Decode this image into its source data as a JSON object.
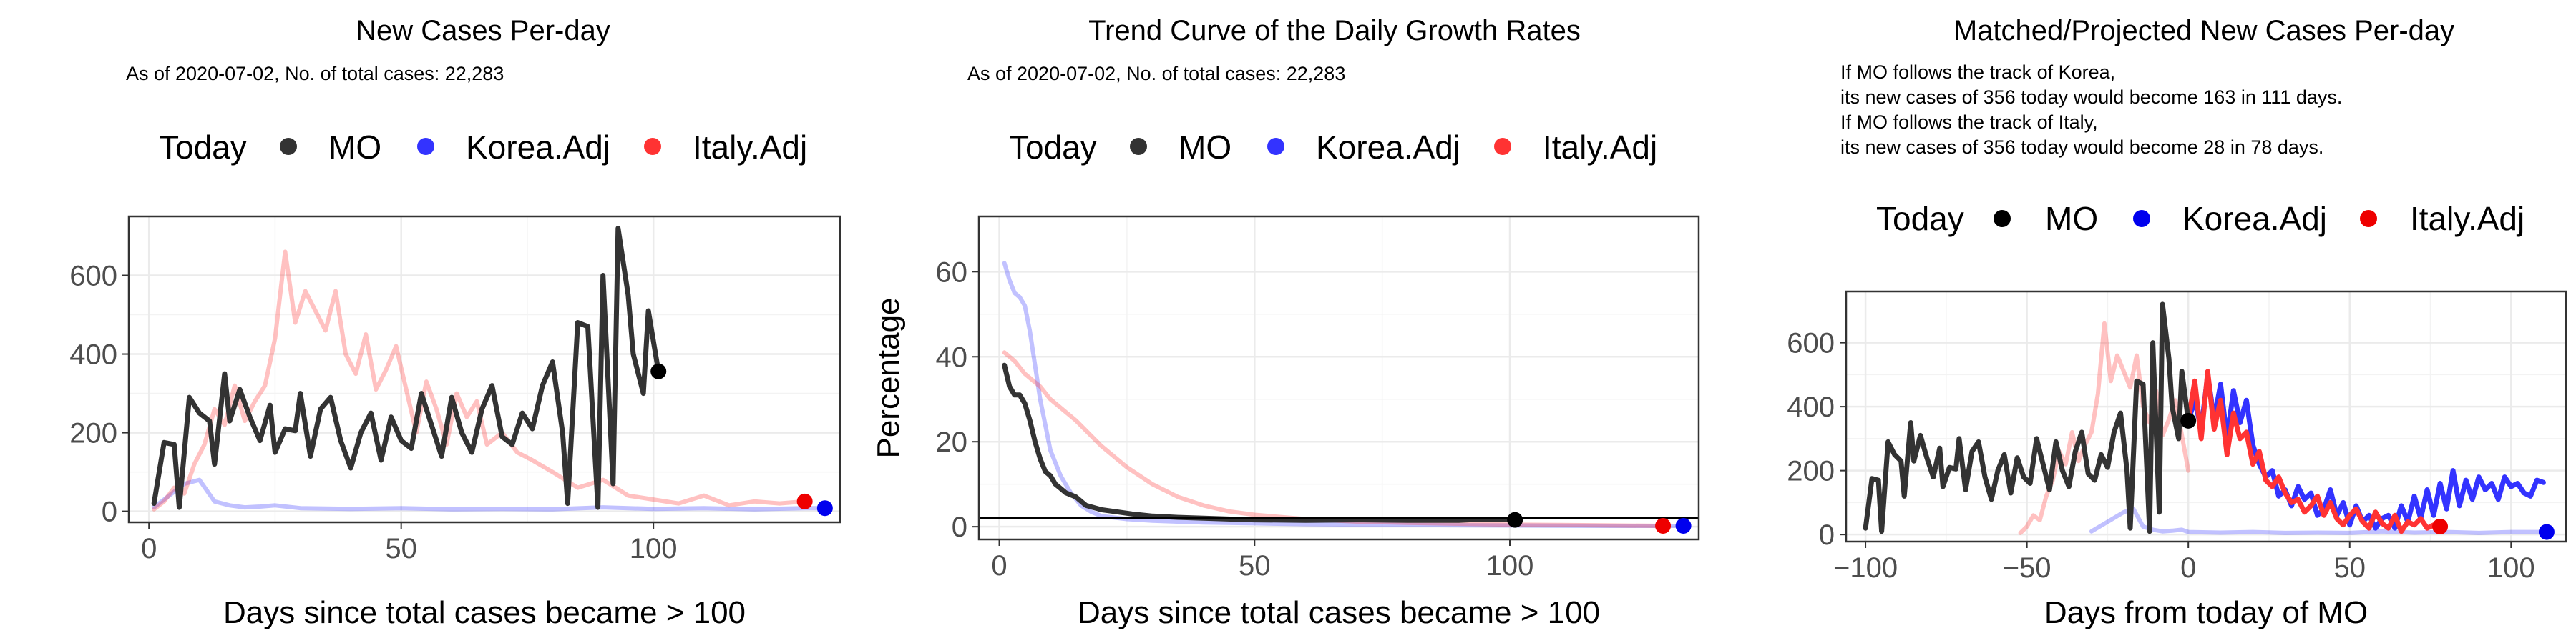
{
  "panels": [
    {
      "title": "New Cases Per-day",
      "subtitle": [
        "As of 2020-07-02, No. of total cases: 22,283"
      ],
      "legend": {
        "title": "Today",
        "items": [
          "MO",
          "Korea.Adj",
          "Italy.Adj"
        ]
      }
    },
    {
      "title": "Trend Curve of the Daily Growth Rates",
      "subtitle": [
        "As of 2020-07-02, No. of total cases: 22,283"
      ],
      "legend": {
        "title": "Today",
        "items": [
          "MO",
          "Korea.Adj",
          "Italy.Adj"
        ]
      }
    },
    {
      "title": "Matched/Projected New Cases Per-day",
      "subtitle": [
        "If MO follows the track of Korea,",
        "its new cases of 356 today would become 163 in 111 days.",
        "If MO follows the track of Italy,",
        "its new cases of 356 today would become 28 in 78 days."
      ],
      "legend": {
        "title": "Today",
        "items": [
          "MO",
          "Korea.Adj",
          "Italy.Adj"
        ]
      }
    }
  ],
  "colors": {
    "mo": "#333333",
    "korea": "#3333ff",
    "italy": "#ff3333",
    "grid": "#ebebeb",
    "frame": "#333333"
  },
  "chart_data": [
    {
      "type": "line",
      "title": "New Cases Per-day",
      "xlabel": "Days since total cases became > 100",
      "ylabel": "",
      "xlim": [
        -4,
        137
      ],
      "ylim": [
        -28,
        750
      ],
      "xticks": [
        0,
        50,
        100
      ],
      "yticks": [
        0,
        200,
        400,
        600
      ],
      "grid": true,
      "legend_position": "top",
      "series": [
        {
          "name": "MO",
          "color": "#333333",
          "opacity": 1.0,
          "x": [
            1,
            3,
            5,
            6,
            8,
            10,
            12,
            13,
            15,
            16,
            18,
            20,
            22,
            24,
            25,
            27,
            29,
            30,
            32,
            34,
            36,
            38,
            40,
            42,
            44,
            46,
            48,
            50,
            52,
            54,
            56,
            58,
            60,
            62,
            64,
            66,
            68,
            70,
            72,
            74,
            76,
            78,
            80,
            82,
            83,
            85,
            87,
            89,
            90,
            92,
            93,
            95,
            96,
            98,
            99,
            101
          ],
          "y": [
            20,
            175,
            170,
            10,
            290,
            250,
            230,
            120,
            350,
            230,
            310,
            240,
            180,
            270,
            150,
            210,
            205,
            300,
            140,
            260,
            290,
            180,
            110,
            200,
            250,
            130,
            240,
            180,
            160,
            300,
            220,
            140,
            290,
            200,
            150,
            260,
            320,
            190,
            170,
            250,
            210,
            320,
            380,
            200,
            20,
            480,
            470,
            10,
            600,
            70,
            720,
            550,
            400,
            300,
            510,
            356
          ]
        },
        {
          "name": "Korea.Adj",
          "color": "#3333ff",
          "opacity": 0.3,
          "x": [
            1,
            4,
            7,
            10,
            13,
            16,
            19,
            22,
            25,
            30,
            40,
            50,
            60,
            70,
            80,
            90,
            100,
            110,
            120,
            130,
            134
          ],
          "y": [
            10,
            40,
            70,
            80,
            25,
            15,
            10,
            12,
            15,
            8,
            6,
            8,
            5,
            6,
            5,
            10,
            6,
            8,
            5,
            8,
            8
          ]
        },
        {
          "name": "Italy.Adj",
          "color": "#ff3333",
          "opacity": 0.3,
          "x": [
            1,
            3,
            5,
            7,
            9,
            11,
            13,
            15,
            17,
            19,
            21,
            23,
            25,
            27,
            29,
            31,
            33,
            35,
            37,
            39,
            41,
            43,
            45,
            47,
            49,
            51,
            53,
            55,
            57,
            59,
            61,
            63,
            65,
            67,
            70,
            73,
            76,
            80,
            85,
            90,
            95,
            100,
            105,
            110,
            115,
            120,
            125,
            130
          ],
          "y": [
            5,
            25,
            60,
            45,
            120,
            170,
            260,
            220,
            320,
            230,
            280,
            320,
            440,
            660,
            480,
            560,
            510,
            460,
            560,
            400,
            350,
            450,
            310,
            360,
            420,
            310,
            200,
            330,
            260,
            170,
            300,
            240,
            280,
            170,
            200,
            150,
            130,
            100,
            60,
            80,
            40,
            30,
            20,
            40,
            15,
            25,
            20,
            25
          ]
        }
      ],
      "today_points": [
        {
          "series": "MO",
          "x": 101,
          "y": 356
        },
        {
          "series": "Korea.Adj",
          "x": 134,
          "y": 8
        },
        {
          "series": "Italy.Adj",
          "x": 130,
          "y": 25
        }
      ]
    },
    {
      "type": "line",
      "title": "Trend Curve of the Daily Growth Rates",
      "xlabel": "Days since total cases became > 100",
      "ylabel": "Percentage",
      "xlim": [
        -4,
        137
      ],
      "ylim": [
        -3,
        73
      ],
      "xticks": [
        0,
        50,
        100
      ],
      "yticks": [
        0,
        20,
        40,
        60
      ],
      "grid": true,
      "legend_position": "top",
      "hline": 2,
      "series": [
        {
          "name": "MO",
          "color": "#333333",
          "opacity": 1.0,
          "x": [
            1,
            2,
            3,
            4,
            5,
            6,
            7,
            8,
            9,
            10,
            11,
            12,
            13,
            15,
            17,
            20,
            23,
            26,
            30,
            35,
            40,
            50,
            60,
            70,
            80,
            90,
            95,
            101
          ],
          "y": [
            38,
            33,
            31,
            31,
            29,
            25,
            20,
            16,
            13,
            12,
            10,
            9,
            8,
            7,
            5,
            4,
            3.5,
            3,
            2.5,
            2.2,
            2,
            1.6,
            1.5,
            1.6,
            1.5,
            1.5,
            1.8,
            1.6
          ]
        },
        {
          "name": "Korea.Adj",
          "color": "#3333ff",
          "opacity": 0.3,
          "x": [
            1,
            2,
            3,
            4,
            5,
            6,
            7,
            8,
            9,
            10,
            12,
            14,
            16,
            18,
            20,
            25,
            30,
            40,
            50,
            60,
            80,
            100,
            120,
            134
          ],
          "y": [
            62,
            58,
            55,
            54,
            52,
            46,
            38,
            30,
            24,
            18,
            12,
            8,
            5,
            3.5,
            2.5,
            1.8,
            1.4,
            1,
            0.8,
            0.6,
            0.4,
            0.3,
            0.2,
            0.2
          ]
        },
        {
          "name": "Italy.Adj",
          "color": "#ff3333",
          "opacity": 0.3,
          "x": [
            1,
            3,
            5,
            8,
            10,
            15,
            20,
            25,
            30,
            35,
            40,
            45,
            50,
            60,
            70,
            80,
            90,
            100,
            110,
            120,
            130
          ],
          "y": [
            41,
            39,
            36,
            33,
            30,
            25,
            19,
            14,
            10,
            7,
            5,
            3.6,
            2.8,
            1.8,
            1.2,
            0.9,
            0.7,
            0.5,
            0.4,
            0.3,
            0.2
          ]
        }
      ],
      "today_points": [
        {
          "series": "MO",
          "x": 101,
          "y": 1.6
        },
        {
          "series": "Korea.Adj",
          "x": 134,
          "y": 0.2
        },
        {
          "series": "Italy.Adj",
          "x": 130,
          "y": 0.2
        }
      ]
    },
    {
      "type": "line",
      "title": "Matched/Projected New Cases Per-day",
      "xlabel": "Days from today of MO",
      "ylabel": "",
      "xlim": [
        -106,
        117
      ],
      "ylim": [
        -22,
        760
      ],
      "xticks": [
        -100,
        -50,
        0,
        50,
        100
      ],
      "yticks": [
        0,
        200,
        400,
        600
      ],
      "grid": true,
      "legend_position": "top",
      "series": [
        {
          "name": "MO",
          "color": "#333333",
          "opacity": 1.0,
          "x": [
            -100,
            -98,
            -96,
            -95,
            -93,
            -91,
            -89,
            -88,
            -86,
            -85,
            -83,
            -81,
            -79,
            -77,
            -76,
            -74,
            -72,
            -71,
            -69,
            -67,
            -65,
            -63,
            -61,
            -59,
            -57,
            -55,
            -53,
            -51,
            -49,
            -47,
            -45,
            -43,
            -41,
            -39,
            -37,
            -35,
            -33,
            -31,
            -29,
            -27,
            -25,
            -23,
            -21,
            -19,
            -18,
            -16,
            -14,
            -12,
            -11,
            -9,
            -8,
            -6,
            -5,
            -3,
            -2,
            0
          ],
          "y": [
            20,
            175,
            170,
            10,
            290,
            250,
            230,
            120,
            350,
            230,
            310,
            240,
            180,
            270,
            150,
            210,
            205,
            300,
            140,
            260,
            290,
            180,
            110,
            200,
            250,
            130,
            240,
            180,
            160,
            300,
            220,
            140,
            290,
            200,
            150,
            260,
            320,
            190,
            170,
            250,
            210,
            320,
            380,
            200,
            20,
            480,
            470,
            10,
            600,
            70,
            720,
            550,
            400,
            300,
            510,
            356
          ]
        },
        {
          "name": "Korea.Adj",
          "color": "#3333ff",
          "opacity": 0.3,
          "x": [
            -30,
            -25,
            -20,
            -17,
            -14,
            -11,
            -8,
            -5,
            -2,
            0,
            10,
            20,
            30,
            40,
            50,
            60,
            70,
            80,
            90,
            100,
            110
          ],
          "y": [
            10,
            40,
            70,
            80,
            25,
            15,
            10,
            12,
            15,
            8,
            6,
            8,
            5,
            6,
            5,
            10,
            6,
            8,
            5,
            8,
            8
          ]
        },
        {
          "name": "Italy.Adj",
          "color": "#ff3333",
          "opacity": 0.3,
          "x": [
            -52,
            -50,
            -48,
            -46,
            -44,
            -42,
            -40,
            -38,
            -36,
            -34,
            -32,
            -30,
            -28,
            -26,
            -24,
            -22,
            -20,
            -18,
            -16,
            -14,
            -12,
            -10,
            -8,
            -6,
            -4,
            -2,
            0
          ],
          "y": [
            5,
            25,
            60,
            45,
            120,
            170,
            260,
            220,
            320,
            230,
            280,
            320,
            440,
            660,
            480,
            560,
            510,
            460,
            560,
            400,
            350,
            450,
            310,
            360,
            420,
            310,
            200
          ]
        },
        {
          "name": "Korea.Adj (projected)",
          "color": "#3333ff",
          "opacity": 1.0,
          "x": [
            0,
            2,
            4,
            6,
            8,
            10,
            12,
            14,
            16,
            18,
            20,
            22,
            24,
            26,
            28,
            30,
            32,
            34,
            36,
            38,
            40,
            42,
            44,
            46,
            48,
            50,
            52,
            54,
            56,
            58,
            60,
            62,
            64,
            66,
            68,
            70,
            72,
            74,
            76,
            78,
            80,
            82,
            84,
            86,
            88,
            90,
            92,
            94,
            96,
            98,
            100,
            102,
            104,
            106,
            108,
            110
          ],
          "y": [
            356,
            420,
            330,
            500,
            360,
            470,
            300,
            450,
            350,
            420,
            280,
            220,
            180,
            200,
            120,
            140,
            90,
            150,
            110,
            130,
            60,
            80,
            140,
            60,
            100,
            30,
            90,
            40,
            60,
            20,
            50,
            60,
            20,
            90,
            40,
            120,
            50,
            140,
            60,
            160,
            80,
            200,
            90,
            170,
            110,
            180,
            140,
            160,
            110,
            180,
            150,
            160,
            130,
            120,
            170,
            163
          ]
        },
        {
          "name": "Italy.Adj (projected)",
          "color": "#ff3333",
          "opacity": 1.0,
          "x": [
            0,
            2,
            4,
            6,
            8,
            10,
            12,
            14,
            16,
            18,
            20,
            22,
            24,
            26,
            28,
            30,
            32,
            34,
            36,
            38,
            40,
            42,
            44,
            46,
            48,
            50,
            52,
            54,
            56,
            58,
            60,
            62,
            64,
            66,
            68,
            70,
            72,
            74,
            76,
            78
          ],
          "y": [
            356,
            480,
            300,
            510,
            330,
            420,
            250,
            380,
            300,
            320,
            220,
            260,
            170,
            150,
            180,
            130,
            100,
            110,
            70,
            90,
            120,
            60,
            100,
            50,
            30,
            60,
            80,
            40,
            20,
            70,
            35,
            20,
            60,
            10,
            40,
            30,
            50,
            20,
            30,
            28
          ]
        }
      ],
      "today_points": [
        {
          "series": "MO",
          "x": 0,
          "y": 356
        },
        {
          "series": "Korea.Adj",
          "x": 111,
          "y": 8
        },
        {
          "series": "Italy.Adj",
          "x": 78,
          "y": 25
        }
      ]
    }
  ]
}
